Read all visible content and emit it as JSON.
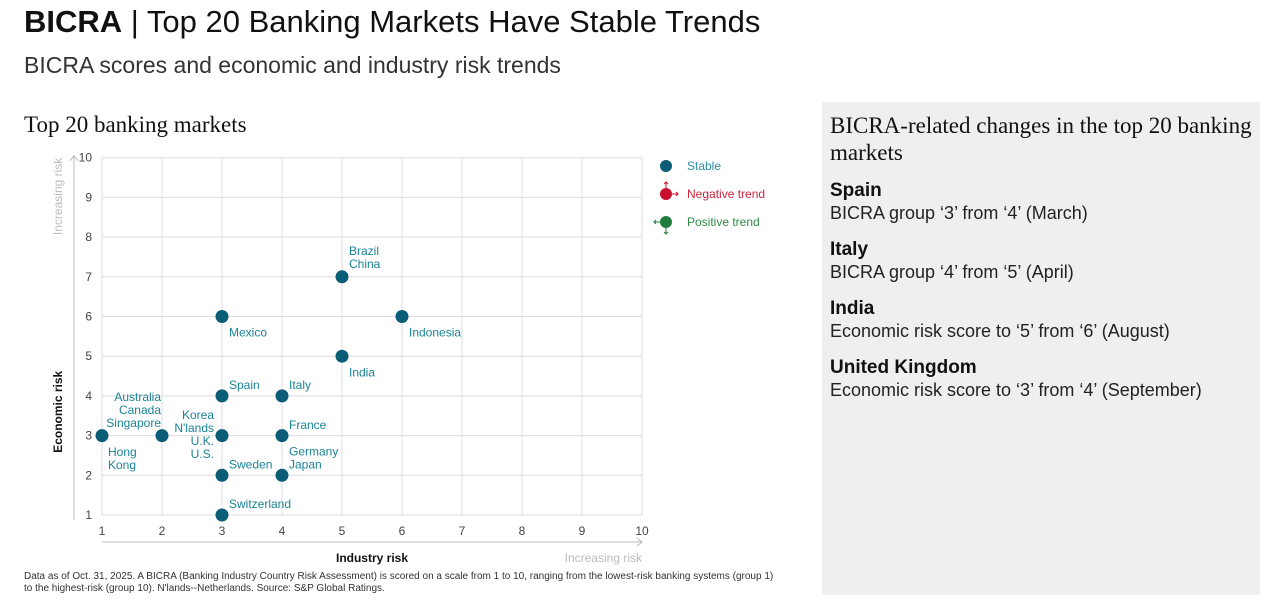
{
  "header": {
    "brand": "BICRA",
    "title": "Top 20 Banking Markets Have Stable Trends",
    "subtitle": "BICRA scores and economic and industry risk trends"
  },
  "chart_data": {
    "type": "scatter",
    "title": "Top 20 banking markets",
    "xlabel": "Industry risk",
    "ylabel": "Economic risk",
    "x_direction_label": "Increasing risk",
    "y_direction_label": "Increasing risk",
    "xlim": [
      1,
      10
    ],
    "ylim": [
      1,
      10
    ],
    "xticks": [
      1,
      2,
      3,
      4,
      5,
      6,
      7,
      8,
      9,
      10
    ],
    "yticks": [
      1,
      2,
      3,
      4,
      5,
      6,
      7,
      8,
      9,
      10
    ],
    "grid": true,
    "legend": {
      "placement": "top-right",
      "entries": [
        {
          "label": "Stable",
          "color": "#0b5c76"
        },
        {
          "label": "Negative trend",
          "color": "#c8102e"
        },
        {
          "label": "Positive trend",
          "color": "#1e7d3a"
        }
      ]
    },
    "points": [
      {
        "x": 1,
        "y": 3,
        "labels": [
          "Hong",
          "Kong"
        ],
        "trend": "Stable"
      },
      {
        "x": 2,
        "y": 3,
        "labels": [
          "Australia",
          "Canada",
          "Singapore"
        ],
        "trend": "Stable"
      },
      {
        "x": 3,
        "y": 3,
        "labels": [
          "Korea",
          "N'lands",
          "U.K.",
          "U.S."
        ],
        "trend": "Stable"
      },
      {
        "x": 3,
        "y": 6,
        "labels": [
          "Mexico"
        ],
        "trend": "Stable"
      },
      {
        "x": 3,
        "y": 4,
        "labels": [
          "Spain"
        ],
        "trend": "Stable"
      },
      {
        "x": 3,
        "y": 2,
        "labels": [
          "Sweden"
        ],
        "trend": "Stable"
      },
      {
        "x": 3,
        "y": 1,
        "labels": [
          "Switzerland"
        ],
        "trend": "Stable"
      },
      {
        "x": 4,
        "y": 4,
        "labels": [
          "Italy"
        ],
        "trend": "Stable"
      },
      {
        "x": 4,
        "y": 3,
        "labels": [
          "France"
        ],
        "trend": "Stable"
      },
      {
        "x": 4,
        "y": 2,
        "labels": [
          "Germany",
          "Japan"
        ],
        "trend": "Stable"
      },
      {
        "x": 5,
        "y": 7,
        "labels": [
          "Brazil",
          "China"
        ],
        "trend": "Stable"
      },
      {
        "x": 5,
        "y": 5,
        "labels": [
          "India"
        ],
        "trend": "Stable"
      },
      {
        "x": 6,
        "y": 6,
        "labels": [
          "Indonesia"
        ],
        "trend": "Stable"
      }
    ]
  },
  "note": "Data as of Oct. 31,  2025. A BICRA (Banking Industry Country Risk Assessment) is scored on a scale from 1 to 10, ranging from the lowest-risk banking systems (group 1) to the highest-risk (group 10). N'lands--Netherlands. Source: S&P Global Ratings.",
  "panel": {
    "title": "BICRA-related changes in the top 20 banking markets",
    "items": [
      {
        "country": "Spain",
        "detail": "BICRA group ‘3’ from ‘4’ (March)"
      },
      {
        "country": "Italy",
        "detail": "BICRA group ‘4’ from ‘5’ (April)"
      },
      {
        "country": "India",
        "detail": "Economic risk score to ‘5’ from ‘6’ (August)"
      },
      {
        "country": "United Kingdom",
        "detail": "Economic risk score to ‘3’ from ‘4’ (September)"
      }
    ]
  }
}
